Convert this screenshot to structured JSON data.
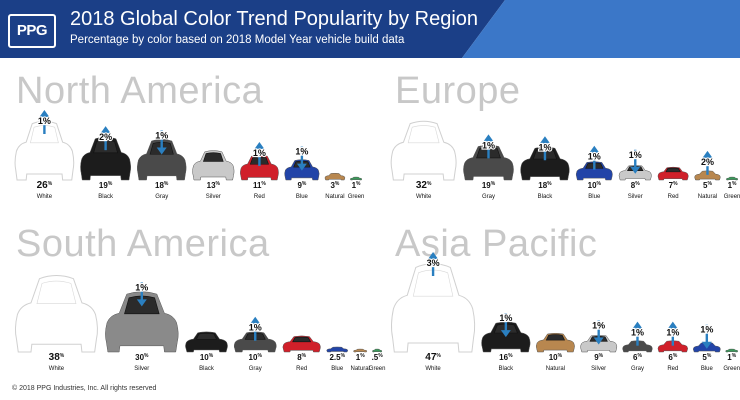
{
  "header": {
    "brand": "PPG",
    "title": "2018 Global Color Trend Popularity by Region",
    "subtitle": "Percentage by color based on 2018 Model Year vehicle build data"
  },
  "footer": {
    "copyright": "© 2018 PPG Industries, Inc. All rights reserved"
  },
  "colors": {
    "header_dark": "#1b3f87",
    "header_light": "#3b77c8",
    "arrow": "#2a7fc0",
    "region_label": "#c8c8c8"
  },
  "chart_data": [
    {
      "type": "bar",
      "title": "North America",
      "categories": [
        "White",
        "Black",
        "Gray",
        "Silver",
        "Red",
        "Blue",
        "Natural",
        "Green"
      ],
      "values": [
        26,
        19,
        18,
        13,
        11,
        9,
        3,
        1
      ],
      "value_labels": [
        "26",
        "19",
        "18",
        "13",
        "11",
        "9",
        "3",
        "1"
      ],
      "unit": "%",
      "swatch_colors": [
        "#ffffff",
        "#1c1c1c",
        "#4a4a4a",
        "#c9c9c9",
        "#d0202a",
        "#2244a8",
        "#b8874f",
        "#3a9a5a"
      ],
      "trend": [
        {
          "category": "White",
          "change": "1%",
          "direction": "up"
        },
        {
          "category": "Black",
          "change": "2%",
          "direction": "up"
        },
        {
          "category": "Gray",
          "change": "1%",
          "direction": "down"
        },
        {
          "category": "Red",
          "change": "1%",
          "direction": "up"
        },
        {
          "category": "Blue",
          "change": "1%",
          "direction": "down"
        }
      ]
    },
    {
      "type": "bar",
      "title": "Europe",
      "categories": [
        "White",
        "Gray",
        "Black",
        "Blue",
        "Silver",
        "Red",
        "Natural",
        "Green"
      ],
      "values": [
        32,
        19,
        18,
        10,
        8,
        7,
        5,
        1
      ],
      "value_labels": [
        "32",
        "19",
        "18",
        "10",
        "8",
        "7",
        "5",
        "1"
      ],
      "unit": "%",
      "swatch_colors": [
        "#ffffff",
        "#4a4a4a",
        "#1c1c1c",
        "#2244a8",
        "#c9c9c9",
        "#d0202a",
        "#b8874f",
        "#3a9a5a"
      ],
      "trend": [
        {
          "category": "Gray",
          "change": "1%",
          "direction": "up"
        },
        {
          "category": "Black",
          "change": "1%",
          "direction": "up"
        },
        {
          "category": "Blue",
          "change": "1%",
          "direction": "up"
        },
        {
          "category": "Silver",
          "change": "1%",
          "direction": "down"
        },
        {
          "category": "Natural",
          "change": "2%",
          "direction": "up"
        }
      ]
    },
    {
      "type": "bar",
      "title": "South America",
      "categories": [
        "White",
        "Silver",
        "Black",
        "Gray",
        "Red",
        "Blue",
        "Natural",
        "Green"
      ],
      "values": [
        38,
        30,
        10,
        10,
        8,
        2.5,
        1,
        0.5
      ],
      "value_labels": [
        "38",
        "30",
        "10",
        "10",
        "8",
        "2.5",
        "1",
        ".5"
      ],
      "unit": "%",
      "swatch_colors": [
        "#ffffff",
        "#8a8a8a",
        "#1c1c1c",
        "#4a4a4a",
        "#d0202a",
        "#2244a8",
        "#b8874f",
        "#3a9a5a"
      ],
      "trend": [
        {
          "category": "Silver",
          "change": "1%",
          "direction": "down"
        },
        {
          "category": "Gray",
          "change": "1%",
          "direction": "up"
        }
      ]
    },
    {
      "type": "bar",
      "title": "Asia Pacific",
      "categories": [
        "White",
        "Black",
        "Natural",
        "Silver",
        "Gray",
        "Red",
        "Blue",
        "Green"
      ],
      "values": [
        47,
        16,
        10,
        9,
        6,
        6,
        5,
        1
      ],
      "value_labels": [
        "47",
        "16",
        "10",
        "9",
        "6",
        "6",
        "5",
        "1"
      ],
      "unit": "%",
      "swatch_colors": [
        "#ffffff",
        "#1c1c1c",
        "#b8874f",
        "#c9c9c9",
        "#4a4a4a",
        "#d0202a",
        "#2244a8",
        "#3a9a5a"
      ],
      "trend": [
        {
          "category": "White",
          "change": "3%",
          "direction": "up"
        },
        {
          "category": "Black",
          "change": "1%",
          "direction": "down"
        },
        {
          "category": "Silver",
          "change": "1%",
          "direction": "down"
        },
        {
          "category": "Gray",
          "change": "1%",
          "direction": "up"
        },
        {
          "category": "Red",
          "change": "1%",
          "direction": "up"
        },
        {
          "category": "Blue",
          "change": "1%",
          "direction": "down"
        }
      ]
    }
  ]
}
